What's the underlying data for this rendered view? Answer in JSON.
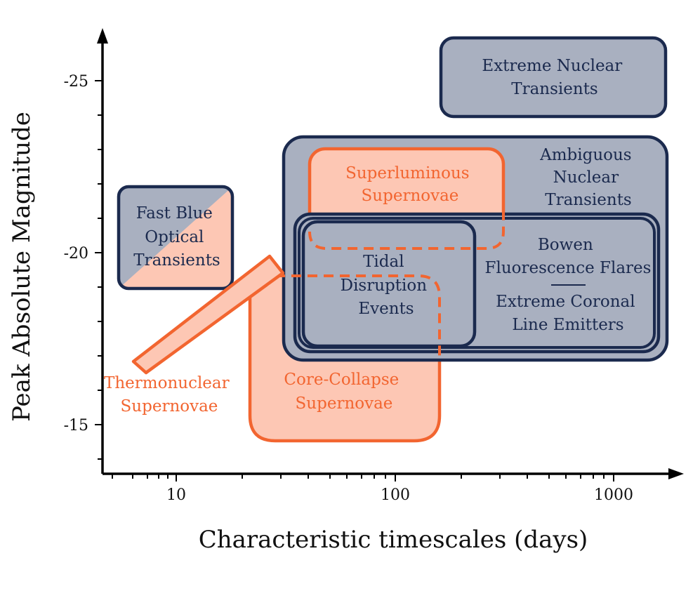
{
  "axes": {
    "x_title": "Characteristic timescales (days)",
    "y_title": "Peak Absolute Magnitude",
    "x_ticks": [
      "10",
      "100",
      "1000"
    ],
    "y_ticks": [
      "-25",
      "-20",
      "-15"
    ]
  },
  "regions": {
    "extreme_nuclear": [
      "Extreme Nuclear",
      "Transients"
    ],
    "ambiguous_nuclear": [
      "Ambiguous",
      "Nuclear",
      "Transients"
    ],
    "superluminous": [
      "Superluminous",
      "Supernovae"
    ],
    "fast_blue": [
      "Fast Blue",
      "Optical",
      "Transients"
    ],
    "tidal_disruption": [
      "Tidal",
      "Disruption",
      "Events"
    ],
    "bowen": [
      "Bowen",
      "Fluorescence Flares"
    ],
    "ecle": [
      "Extreme Coronal",
      "Line Emitters"
    ],
    "thermonuclear": [
      "Thermonuclear",
      "Supernovae"
    ],
    "core_collapse": [
      "Core-Collapse",
      "Supernovae"
    ]
  },
  "colors": {
    "navy_fill": "#a9b0c0",
    "navy_stroke": "#1b2a4e",
    "orange_fill": "#fdc7b4",
    "orange_stroke": "#f26530"
  }
}
